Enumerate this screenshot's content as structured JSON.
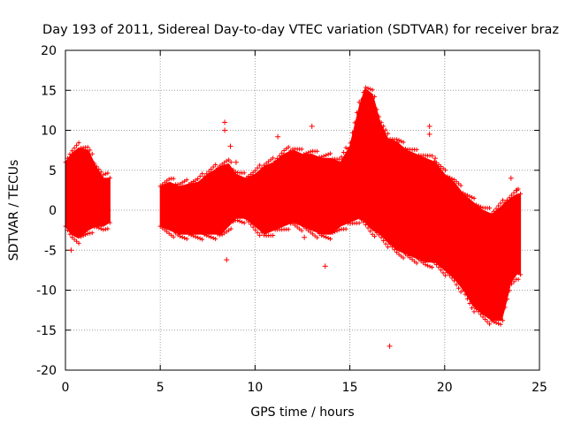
{
  "chart_data": {
    "type": "scatter",
    "title": "Day 193 of 2011, Sidereal Day-to-day VTEC variation (SDTVAR) for receiver braz",
    "xlabel": "GPS time / hours",
    "ylabel": "SDTVAR / TECUs",
    "xlim": [
      0,
      25
    ],
    "ylim": [
      -20,
      20
    ],
    "xticks": [
      0,
      5,
      10,
      15,
      20,
      25
    ],
    "yticks": [
      -20,
      -15,
      -10,
      -5,
      0,
      5,
      10,
      15,
      20
    ],
    "grid": true,
    "marker": "+",
    "color": "#ff0000",
    "series": [
      {
        "name": "SDTVAR",
        "envelope": [
          {
            "x": 0.0,
            "upper": 6.0,
            "lower": -2.0
          },
          {
            "x": 0.3,
            "upper": 7.0,
            "lower": -3.0
          },
          {
            "x": 0.7,
            "upper": 7.8,
            "lower": -3.5
          },
          {
            "x": 1.2,
            "upper": 7.5,
            "lower": -2.5
          },
          {
            "x": 1.6,
            "upper": 5.5,
            "lower": -2.0
          },
          {
            "x": 2.0,
            "upper": 4.0,
            "lower": -2.0
          },
          {
            "x": 2.35,
            "upper": 4.0,
            "lower": -1.5
          },
          {
            "x": null,
            "upper": null,
            "lower": null
          },
          {
            "x": 5.0,
            "upper": 3.0,
            "lower": -2.0
          },
          {
            "x": 5.5,
            "upper": 3.5,
            "lower": -2.5
          },
          {
            "x": 6.0,
            "upper": 3.0,
            "lower": -3.0
          },
          {
            "x": 7.0,
            "upper": 3.5,
            "lower": -3.0
          },
          {
            "x": 7.5,
            "upper": 4.5,
            "lower": -3.0
          },
          {
            "x": 8.2,
            "upper": 5.5,
            "lower": -3.0
          },
          {
            "x": 8.6,
            "upper": 5.8,
            "lower": -2.0
          },
          {
            "x": 9.0,
            "upper": 4.5,
            "lower": -1.0
          },
          {
            "x": 9.5,
            "upper": 4.0,
            "lower": -1.0
          },
          {
            "x": 10.0,
            "upper": 4.5,
            "lower": -2.0
          },
          {
            "x": 10.5,
            "upper": 5.5,
            "lower": -3.0
          },
          {
            "x": 11.0,
            "upper": 6.0,
            "lower": -2.5
          },
          {
            "x": 11.5,
            "upper": 7.0,
            "lower": -2.0
          },
          {
            "x": 12.0,
            "upper": 7.5,
            "lower": -1.5
          },
          {
            "x": 12.5,
            "upper": 7.0,
            "lower": -2.0
          },
          {
            "x": 13.0,
            "upper": 7.0,
            "lower": -2.5
          },
          {
            "x": 13.5,
            "upper": 6.5,
            "lower": -3.0
          },
          {
            "x": 14.0,
            "upper": 6.5,
            "lower": -3.0
          },
          {
            "x": 14.5,
            "upper": 6.0,
            "lower": -2.0
          },
          {
            "x": 15.0,
            "upper": 8.0,
            "lower": -1.5
          },
          {
            "x": 15.5,
            "upper": 13.0,
            "lower": -1.0
          },
          {
            "x": 15.8,
            "upper": 15.2,
            "lower": -1.5
          },
          {
            "x": 16.2,
            "upper": 14.5,
            "lower": -2.5
          },
          {
            "x": 16.6,
            "upper": 11.0,
            "lower": -3.0
          },
          {
            "x": 17.0,
            "upper": 9.0,
            "lower": -4.0
          },
          {
            "x": 17.5,
            "upper": 8.5,
            "lower": -5.0
          },
          {
            "x": 18.0,
            "upper": 7.5,
            "lower": -5.5
          },
          {
            "x": 18.5,
            "upper": 7.0,
            "lower": -6.0
          },
          {
            "x": 19.0,
            "upper": 6.5,
            "lower": -6.5
          },
          {
            "x": 19.5,
            "upper": 6.0,
            "lower": -6.5
          },
          {
            "x": 20.0,
            "upper": 4.5,
            "lower": -7.5
          },
          {
            "x": 20.5,
            "upper": 3.5,
            "lower": -8.5
          },
          {
            "x": 21.0,
            "upper": 2.0,
            "lower": -10.0
          },
          {
            "x": 21.5,
            "upper": 1.0,
            "lower": -12.0
          },
          {
            "x": 22.0,
            "upper": 0.0,
            "lower": -13.0
          },
          {
            "x": 22.5,
            "upper": -0.5,
            "lower": -13.8
          },
          {
            "x": 23.0,
            "upper": 0.5,
            "lower": -13.8
          },
          {
            "x": 23.2,
            "upper": 1.0,
            "lower": -12.0
          },
          {
            "x": 23.5,
            "upper": 1.5,
            "lower": -9.0
          },
          {
            "x": 23.8,
            "upper": 2.0,
            "lower": -8.0
          },
          {
            "x": 24.0,
            "upper": 2.0,
            "lower": -8.0
          }
        ],
        "outliers": [
          {
            "x": 0.3,
            "y": -5.0
          },
          {
            "x": 8.4,
            "y": 11.0
          },
          {
            "x": 8.4,
            "y": 10.0
          },
          {
            "x": 8.5,
            "y": -6.2
          },
          {
            "x": 8.7,
            "y": 8.0
          },
          {
            "x": 9.0,
            "y": 6.0
          },
          {
            "x": 11.2,
            "y": 9.2
          },
          {
            "x": 12.6,
            "y": -3.4
          },
          {
            "x": 13.0,
            "y": 10.5
          },
          {
            "x": 13.7,
            "y": -7.0
          },
          {
            "x": 17.1,
            "y": -17.0
          },
          {
            "x": 17.5,
            "y": 8.5
          },
          {
            "x": 19.2,
            "y": 10.5
          },
          {
            "x": 19.2,
            "y": 9.5
          },
          {
            "x": 19.5,
            "y": 6.5
          },
          {
            "x": 23.5,
            "y": 4.0
          },
          {
            "x": 23.8,
            "y": 2.5
          }
        ]
      }
    ]
  }
}
